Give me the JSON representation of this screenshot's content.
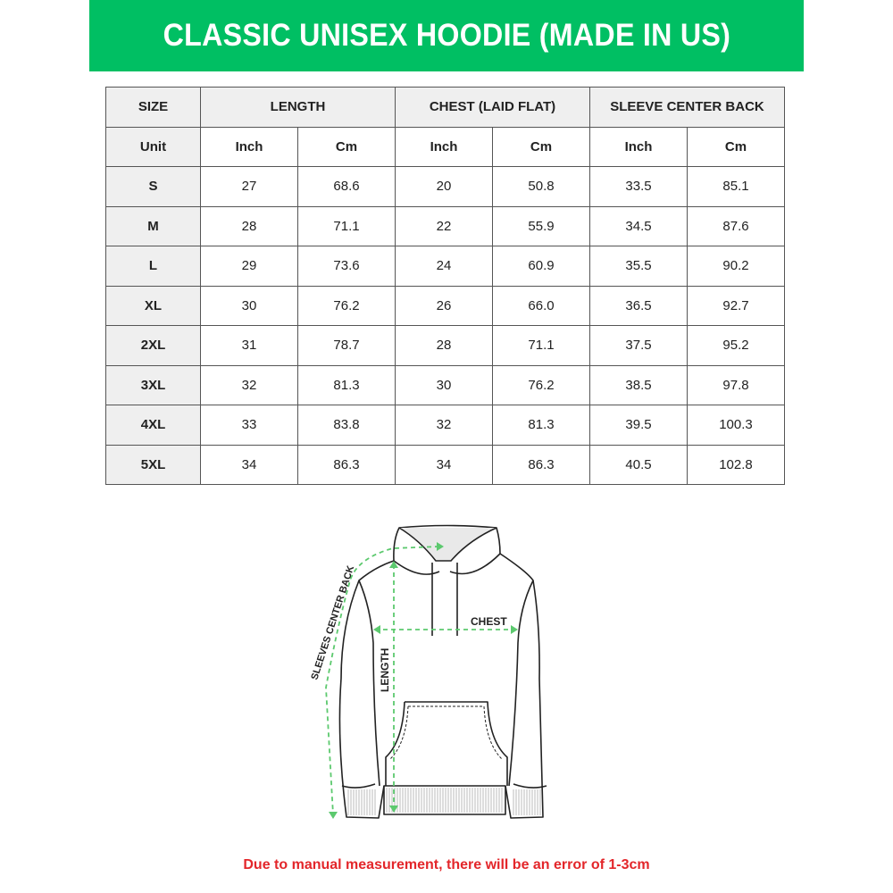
{
  "title": "CLASSIC UNISEX HOODIE (MADE IN US)",
  "colors": {
    "banner": "#00BF63",
    "note": "#e3262a",
    "arrow": "#5cc96e"
  },
  "table": {
    "groups": [
      "SIZE",
      "LENGTH",
      "CHEST (LAID FLAT)",
      "SLEEVE CENTER BACK"
    ],
    "unit_label": "Unit",
    "units": [
      "Inch",
      "Cm",
      "Inch",
      "Cm",
      "Inch",
      "Cm"
    ],
    "rows": [
      [
        "S",
        "27",
        "68.6",
        "20",
        "50.8",
        "33.5",
        "85.1"
      ],
      [
        "M",
        "28",
        "71.1",
        "22",
        "55.9",
        "34.5",
        "87.6"
      ],
      [
        "L",
        "29",
        "73.6",
        "24",
        "60.9",
        "35.5",
        "90.2"
      ],
      [
        "XL",
        "30",
        "76.2",
        "26",
        "66.0",
        "36.5",
        "92.7"
      ],
      [
        "2XL",
        "31",
        "78.7",
        "28",
        "71.1",
        "37.5",
        "95.2"
      ],
      [
        "3XL",
        "32",
        "81.3",
        "30",
        "76.2",
        "38.5",
        "97.8"
      ],
      [
        "4XL",
        "33",
        "83.8",
        "32",
        "81.3",
        "39.5",
        "100.3"
      ],
      [
        "5XL",
        "34",
        "86.3",
        "34",
        "86.3",
        "40.5",
        "102.8"
      ]
    ]
  },
  "diagram": {
    "chest_label": "CHEST",
    "length_label": "LENGTH",
    "sleeve_label": "SLEEVES CENTER BACK"
  },
  "note": "Due to manual measurement, there will be an error of 1-3cm"
}
